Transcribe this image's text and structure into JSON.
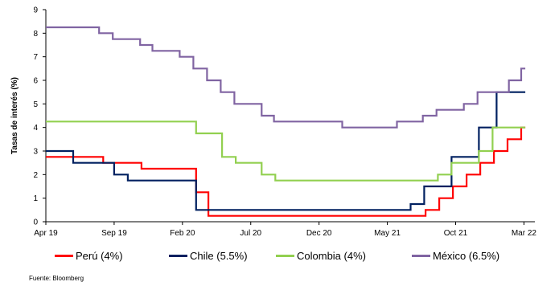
{
  "chart_data": {
    "type": "line",
    "step": true,
    "ylabel": "Tasas de interés (%)",
    "ylim": [
      0,
      9
    ],
    "yticks": [
      "0",
      "1",
      "2",
      "3",
      "4",
      "5",
      "6",
      "7",
      "8",
      "9"
    ],
    "xlim": [
      0,
      35.8
    ],
    "xtick_positions": [
      0,
      5,
      10,
      15,
      20,
      25,
      30,
      35
    ],
    "xticks": [
      "Apr 19",
      "Sep 19",
      "Feb 20",
      "Jul 20",
      "Dec 20",
      "May 21",
      "Oct 21",
      "Mar 22"
    ],
    "series": [
      {
        "name": "Perú (4%)",
        "color": "#ff0000",
        "points": [
          [
            0,
            2.75
          ],
          [
            4.2,
            2.75
          ],
          [
            4.2,
            2.5
          ],
          [
            7,
            2.5
          ],
          [
            7,
            2.25
          ],
          [
            11,
            2.25
          ],
          [
            11,
            1.25
          ],
          [
            11.9,
            1.25
          ],
          [
            11.9,
            0.25
          ],
          [
            27.8,
            0.25
          ],
          [
            27.8,
            0.5
          ],
          [
            28.8,
            0.5
          ],
          [
            28.8,
            1.0
          ],
          [
            29.8,
            1.0
          ],
          [
            29.8,
            1.5
          ],
          [
            30.8,
            1.5
          ],
          [
            30.8,
            2.0
          ],
          [
            31.8,
            2.0
          ],
          [
            31.8,
            2.5
          ],
          [
            32.8,
            2.5
          ],
          [
            32.8,
            3.0
          ],
          [
            33.8,
            3.0
          ],
          [
            33.8,
            3.5
          ],
          [
            34.8,
            3.5
          ],
          [
            34.8,
            4.0
          ],
          [
            35.1,
            4.0
          ]
        ]
      },
      {
        "name": "Chile (5.5%)",
        "color": "#002060",
        "points": [
          [
            0,
            3.0
          ],
          [
            2,
            3.0
          ],
          [
            2,
            2.5
          ],
          [
            5,
            2.5
          ],
          [
            5,
            2.0
          ],
          [
            6,
            2.0
          ],
          [
            6,
            1.75
          ],
          [
            11,
            1.75
          ],
          [
            11,
            0.5
          ],
          [
            26.7,
            0.5
          ],
          [
            26.7,
            0.75
          ],
          [
            27.7,
            0.75
          ],
          [
            27.7,
            1.5
          ],
          [
            29.7,
            1.5
          ],
          [
            29.7,
            2.75
          ],
          [
            31.7,
            2.75
          ],
          [
            31.7,
            4.0
          ],
          [
            33,
            4.0
          ],
          [
            33,
            5.5
          ],
          [
            35.1,
            5.5
          ]
        ]
      },
      {
        "name": "Colombia (4%)",
        "color": "#92d050",
        "points": [
          [
            0,
            4.25
          ],
          [
            11,
            4.25
          ],
          [
            11,
            3.75
          ],
          [
            12.9,
            3.75
          ],
          [
            12.9,
            2.75
          ],
          [
            13.9,
            2.75
          ],
          [
            13.9,
            2.5
          ],
          [
            15.8,
            2.5
          ],
          [
            15.8,
            2.0
          ],
          [
            16.8,
            2.0
          ],
          [
            16.8,
            1.75
          ],
          [
            28.7,
            1.75
          ],
          [
            28.7,
            2.0
          ],
          [
            29.7,
            2.0
          ],
          [
            29.7,
            2.5
          ],
          [
            31.7,
            2.5
          ],
          [
            31.7,
            3.0
          ],
          [
            32.7,
            3.0
          ],
          [
            32.7,
            4.0
          ],
          [
            35.1,
            4.0
          ]
        ]
      },
      {
        "name": "México (6.5%)",
        "color": "#8064a2",
        "points": [
          [
            0,
            8.25
          ],
          [
            3.9,
            8.25
          ],
          [
            3.9,
            8.0
          ],
          [
            4.9,
            8.0
          ],
          [
            4.9,
            7.75
          ],
          [
            6.9,
            7.75
          ],
          [
            6.9,
            7.5
          ],
          [
            7.8,
            7.5
          ],
          [
            7.8,
            7.25
          ],
          [
            9.8,
            7.25
          ],
          [
            9.8,
            7.0
          ],
          [
            10.8,
            7.0
          ],
          [
            10.8,
            6.5
          ],
          [
            11.8,
            6.5
          ],
          [
            11.8,
            6.0
          ],
          [
            12.8,
            6.0
          ],
          [
            12.8,
            5.5
          ],
          [
            13.8,
            5.5
          ],
          [
            13.8,
            5.0
          ],
          [
            15.8,
            5.0
          ],
          [
            15.8,
            4.5
          ],
          [
            16.7,
            4.5
          ],
          [
            16.7,
            4.25
          ],
          [
            21.7,
            4.25
          ],
          [
            21.7,
            4.0
          ],
          [
            25.7,
            4.0
          ],
          [
            25.7,
            4.25
          ],
          [
            27.6,
            4.25
          ],
          [
            27.6,
            4.5
          ],
          [
            28.6,
            4.5
          ],
          [
            28.6,
            4.75
          ],
          [
            30.6,
            4.75
          ],
          [
            30.6,
            5.0
          ],
          [
            31.6,
            5.0
          ],
          [
            31.6,
            5.5
          ],
          [
            33.9,
            5.5
          ],
          [
            33.9,
            6.0
          ],
          [
            34.8,
            6.0
          ],
          [
            34.8,
            6.5
          ],
          [
            35.1,
            6.5
          ]
        ]
      }
    ],
    "legend_position": "bottom"
  },
  "legend": [
    {
      "label": "Perú (4%)",
      "color": "#ff0000"
    },
    {
      "label": "Chile (5.5%)",
      "color": "#002060"
    },
    {
      "label": "Colombia (4%)",
      "color": "#92d050"
    },
    {
      "label": "México (6.5%)",
      "color": "#8064a2"
    }
  ],
  "source": "Fuente: Bloomberg"
}
